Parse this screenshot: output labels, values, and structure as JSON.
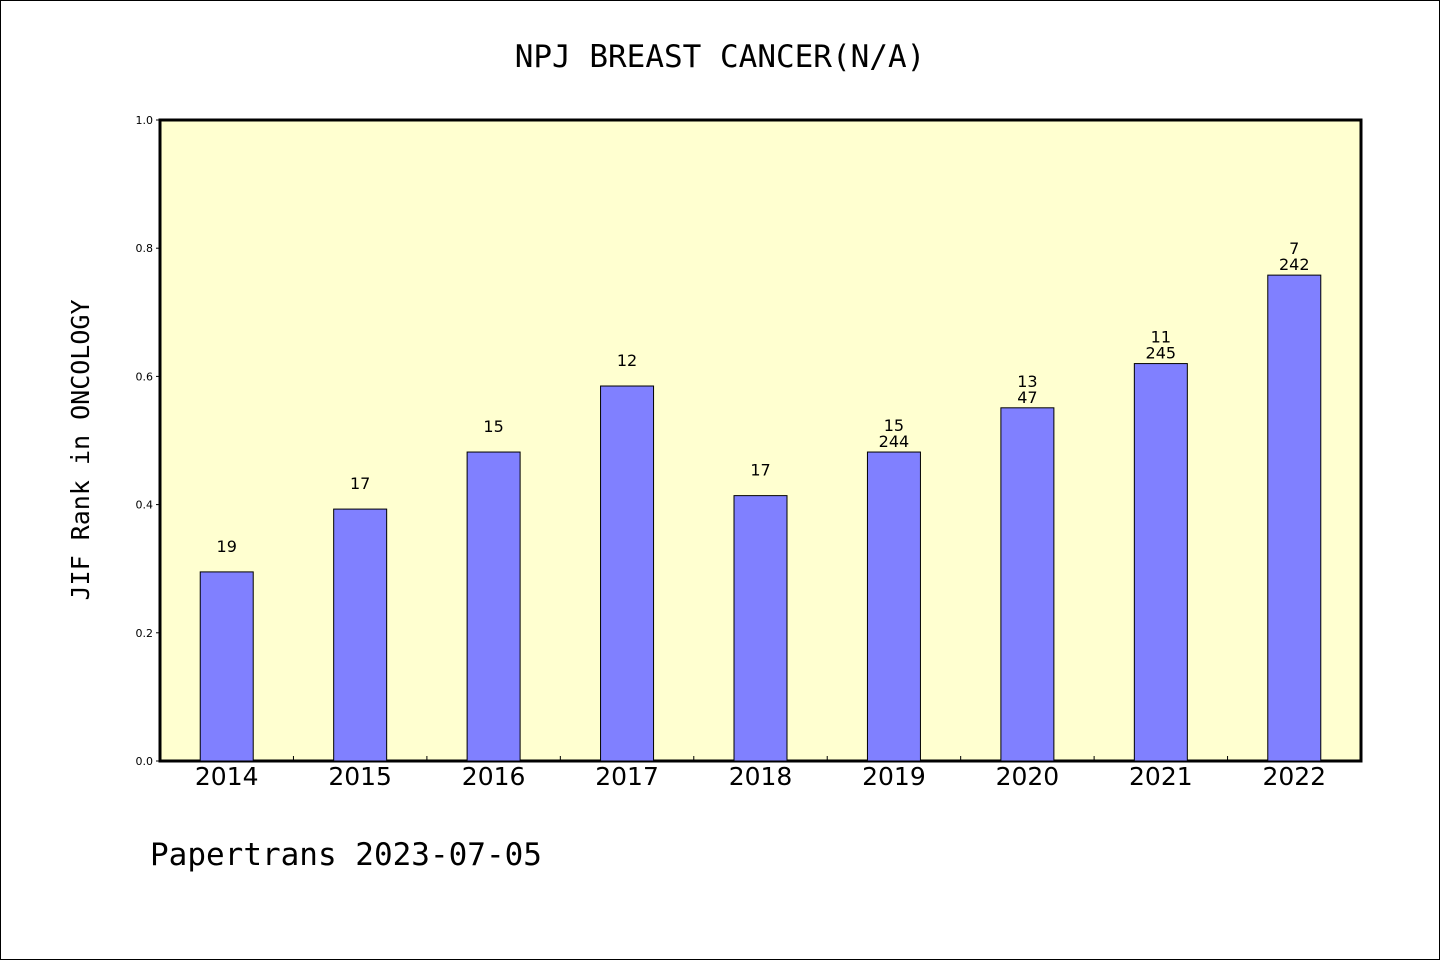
{
  "chart_data": {
    "type": "bar",
    "title": "NPJ BREAST CANCER(N/A)",
    "xlabel": "",
    "ylabel": "JIF Rank in ONCOLOGY",
    "ylim": [
      0,
      1.0
    ],
    "yticks": [
      "0.0",
      "0.2",
      "0.4",
      "0.6",
      "0.8",
      "1.0"
    ],
    "categories": [
      "2014",
      "2015",
      "2016",
      "2017",
      "2018",
      "2019",
      "2020",
      "2021",
      "2022"
    ],
    "values": [
      0.295,
      0.393,
      0.482,
      0.585,
      0.414,
      0.482,
      0.551,
      0.62,
      0.758
    ],
    "labels_top": [
      "19",
      "17",
      "15",
      "12",
      "17",
      "15",
      "13",
      "11",
      "7"
    ],
    "labels_bottom": [
      "",
      "",
      "",
      "",
      "",
      "244",
      "47",
      "245",
      "242"
    ],
    "colors": {
      "plot_bg": "#ffffd0",
      "bar": "#8080ff",
      "bar_edge": "#000000"
    },
    "grid": false,
    "legend": "none"
  },
  "footer": "Papertrans 2023-07-05"
}
